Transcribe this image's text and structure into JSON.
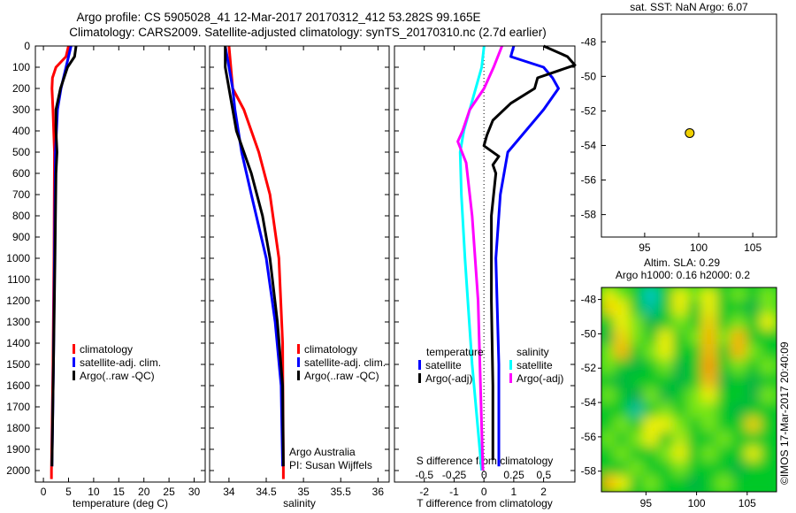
{
  "header": {
    "title_line1": "Argo profile: CS 5905028_41 12-Mar-2017 20170312_412 53.282S 99.165E",
    "title_line2": "Climatology: CARS2009. Satellite-adjusted climatology: synTS_20170310.nc (2.7d earlier)"
  },
  "credit": "©IMOS 17-Mar-2017 20:40:09",
  "colors": {
    "red": "#ff0000",
    "blue": "#0000ff",
    "black": "#000000",
    "cyan": "#00ffff",
    "magenta": "#ff00ff",
    "dot": "#f0d000"
  },
  "chart_data": [
    {
      "id": "temperature",
      "type": "line",
      "xlabel": "temperature (deg C)",
      "ylabel": "",
      "xlim": [
        -1.6,
        32.2
      ],
      "ylim": [
        2050,
        0
      ],
      "xticks": [
        0,
        5,
        10,
        15,
        20,
        25,
        30
      ],
      "yticks": [
        0,
        100,
        200,
        300,
        400,
        500,
        600,
        700,
        800,
        900,
        1000,
        1100,
        1200,
        1300,
        1400,
        1500,
        1600,
        1700,
        1800,
        1900,
        2000
      ],
      "legend": [
        "climatology",
        "satellite-adj. clim.",
        "Argo(..raw -QC)"
      ],
      "series": [
        {
          "name": "climatology",
          "color": "#ff0000",
          "depth": [
            0,
            50,
            100,
            150,
            200,
            300,
            500,
            1000,
            1500,
            2000,
            2040
          ],
          "values": [
            5,
            4.5,
            2.5,
            1.8,
            1.7,
            1.9,
            2.2,
            2.1,
            1.9,
            1.6,
            1.6
          ]
        },
        {
          "name": "satellite-adj. clim.",
          "color": "#0000ff",
          "depth": [
            0,
            100,
            200,
            300,
            500,
            1000,
            1500,
            1980
          ],
          "values": [
            5.5,
            4.5,
            3.5,
            2.8,
            2.4,
            2.2,
            2.0,
            1.7
          ]
        },
        {
          "name": "Argo(..raw -QC)",
          "color": "#000000",
          "depth": [
            0,
            50,
            100,
            200,
            300,
            400,
            500,
            600,
            1000,
            1500,
            1980
          ],
          "values": [
            6.5,
            6.2,
            4.8,
            3.4,
            2.5,
            2.5,
            2.7,
            2.5,
            2.3,
            2.0,
            1.7
          ]
        }
      ]
    },
    {
      "id": "salinity",
      "type": "line",
      "xlabel": "salinity",
      "xlim": [
        33.74,
        36.15
      ],
      "ylim": [
        2050,
        0
      ],
      "xticks": [
        34,
        34.5,
        35,
        35.5,
        36
      ],
      "legend": [
        "climatology",
        "satellite-adj. clim.",
        "Argo(..raw -QC)"
      ],
      "annotations": [
        "Argo Australia",
        "PI: Susan Wijffels"
      ],
      "series": [
        {
          "name": "climatology",
          "color": "#ff0000",
          "depth": [
            0,
            200,
            300,
            400,
            500,
            700,
            1000,
            1400,
            2000,
            2040
          ],
          "values": [
            34.0,
            34.05,
            34.2,
            34.3,
            34.4,
            34.55,
            34.67,
            34.72,
            34.73,
            34.73
          ]
        },
        {
          "name": "satellite-adj. clim.",
          "color": "#0000ff",
          "depth": [
            0,
            200,
            300,
            500,
            700,
            1000,
            1300,
            1600,
            1980
          ],
          "values": [
            33.95,
            34.05,
            34.08,
            34.17,
            34.3,
            34.5,
            34.62,
            34.7,
            34.72
          ]
        },
        {
          "name": "Argo(..raw -QC)",
          "color": "#000000",
          "depth": [
            0,
            100,
            200,
            300,
            400,
            500,
            600,
            800,
            1000,
            1300,
            1600,
            1980
          ],
          "values": [
            33.95,
            33.95,
            34.0,
            34.05,
            34.1,
            34.2,
            34.3,
            34.45,
            34.55,
            34.65,
            34.72,
            34.73
          ]
        }
      ]
    },
    {
      "id": "differences",
      "type": "line",
      "xlabel": "T difference from climatology",
      "x2label": "S difference from climatology",
      "xlim": [
        -3.0,
        3.05
      ],
      "x2lim": [
        -0.75,
        0.76
      ],
      "ylim": [
        2050,
        0
      ],
      "xticks": [
        -2,
        -1,
        0,
        1,
        2
      ],
      "x2ticks": [
        -0.5,
        -0.25,
        0,
        0.25,
        0.5
      ],
      "legend_headers": [
        "temperature",
        "salinity"
      ],
      "legend": [
        "satellite",
        "Argo(-adj)",
        "satellite",
        "Argo(-adj)"
      ],
      "series": [
        {
          "name": "temperature satellite",
          "axis": "T",
          "color": "#0000ff",
          "depth": [
            0,
            50,
            100,
            150,
            200,
            300,
            400,
            500,
            700,
            1000,
            1500,
            1980
          ],
          "values": [
            1.0,
            0.9,
            2.0,
            2.3,
            2.5,
            2.0,
            1.4,
            0.8,
            0.55,
            0.4,
            0.5,
            0.5
          ]
        },
        {
          "name": "temperature Argo(-adj)",
          "axis": "T",
          "color": "#000000",
          "depth": [
            0,
            50,
            90,
            150,
            200,
            270,
            350,
            420,
            470,
            520,
            560,
            600,
            800,
            1200,
            1600,
            1950
          ],
          "values": [
            2.0,
            2.8,
            3.1,
            1.8,
            1.7,
            0.9,
            0.3,
            0.1,
            0.0,
            0.5,
            0.3,
            0.4,
            0.25,
            0.25,
            0.3,
            0.3
          ]
        },
        {
          "name": "salinity satellite",
          "axis": "S",
          "color": "#00ffff",
          "depth": [
            0,
            100,
            200,
            300,
            400,
            500,
            700,
            1000,
            1500,
            2000
          ],
          "values": [
            0.0,
            -0.02,
            -0.07,
            -0.12,
            -0.17,
            -0.2,
            -0.19,
            -0.16,
            -0.1,
            -0.02
          ]
        },
        {
          "name": "salinity Argo(-adj)",
          "axis": "S",
          "color": "#ff00ff",
          "depth": [
            0,
            100,
            200,
            300,
            400,
            450,
            550,
            800,
            1200,
            2000
          ],
          "values": [
            0.15,
            0.08,
            0.0,
            -0.12,
            -0.18,
            -0.22,
            -0.15,
            -0.1,
            -0.05,
            -0.01
          ]
        }
      ]
    },
    {
      "id": "location",
      "type": "scatter",
      "title": "sat. SST: NaN Argo: 6.07",
      "xlim": [
        91.0,
        107.2
      ],
      "ylim": [
        -59.3,
        -46.4
      ],
      "xticks": [
        95,
        100,
        105
      ],
      "yticks": [
        -48,
        -50,
        -52,
        -54,
        -56,
        -58
      ],
      "points": [
        {
          "lon": 99.165,
          "lat": -53.282
        }
      ]
    },
    {
      "id": "sla",
      "type": "heatmap",
      "title": "Altim. SLA: 0.29",
      "subtitle": "Argo h1000: 0.16 h2000: 0.2",
      "xlim": [
        90.6,
        107.9
      ],
      "ylim": [
        -59.2,
        -47.3
      ],
      "xticks": [
        95,
        100,
        105
      ],
      "yticks": [
        -48,
        -50,
        -52,
        -54,
        -56,
        -58
      ],
      "grid": [
        [
          0.2,
          0.1,
          0.0,
          -0.3,
          0.0,
          0.2,
          0.1,
          0.2,
          0.0,
          0.1,
          0.0,
          0.1
        ],
        [
          0.25,
          0.2,
          0.0,
          -0.25,
          0.0,
          0.2,
          0.0,
          0.2,
          0.0,
          0.0,
          -0.1,
          0.1
        ],
        [
          0.0,
          0.2,
          0.1,
          -0.1,
          0.0,
          0.1,
          0.0,
          0.25,
          0.0,
          0.1,
          0.0,
          0.2
        ],
        [
          -0.1,
          0.25,
          0.1,
          0.0,
          0.2,
          0.0,
          0.1,
          0.3,
          0.1,
          0.3,
          0.0,
          0.0
        ],
        [
          0.1,
          0.3,
          0.0,
          0.1,
          0.2,
          0.0,
          0.0,
          0.3,
          0.0,
          0.3,
          0.1,
          0.0
        ],
        [
          0.1,
          0.0,
          -0.1,
          0.0,
          0.1,
          -0.1,
          0.0,
          0.35,
          0.0,
          0.1,
          0.0,
          0.1
        ],
        [
          0.0,
          -0.1,
          0.0,
          0.0,
          0.0,
          -0.1,
          0.0,
          0.3,
          -0.1,
          0.0,
          -0.1,
          0.0
        ],
        [
          0.1,
          0.0,
          -0.15,
          0.1,
          -0.1,
          0.0,
          0.1,
          0.2,
          0.0,
          0.0,
          -0.1,
          0.1
        ],
        [
          0.0,
          0.0,
          -0.25,
          0.0,
          0.1,
          0.0,
          0.1,
          0.1,
          0.0,
          -0.1,
          0.0,
          0.0
        ],
        [
          0.0,
          0.1,
          0.0,
          0.2,
          0.2,
          0.1,
          0.0,
          0.1,
          0.0,
          0.0,
          0.25,
          0.0
        ],
        [
          0.1,
          0.0,
          0.1,
          0.2,
          0.0,
          0.15,
          0.0,
          0.0,
          0.1,
          0.0,
          0.0,
          0.0
        ],
        [
          0.0,
          0.1,
          0.0,
          0.0,
          0.1,
          0.2,
          0.0,
          0.1,
          0.0,
          0.0,
          0.2,
          0.0
        ],
        [
          0.0,
          0.0,
          0.1,
          0.0,
          0.0,
          0.1,
          0.0,
          0.0,
          0.0,
          -0.1,
          0.0,
          0.0
        ],
        [
          0.3,
          0.2,
          0.0,
          0.1,
          0.0,
          0.0,
          -0.1,
          0.0,
          0.1,
          0.0,
          0.0,
          0.0
        ]
      ]
    }
  ]
}
